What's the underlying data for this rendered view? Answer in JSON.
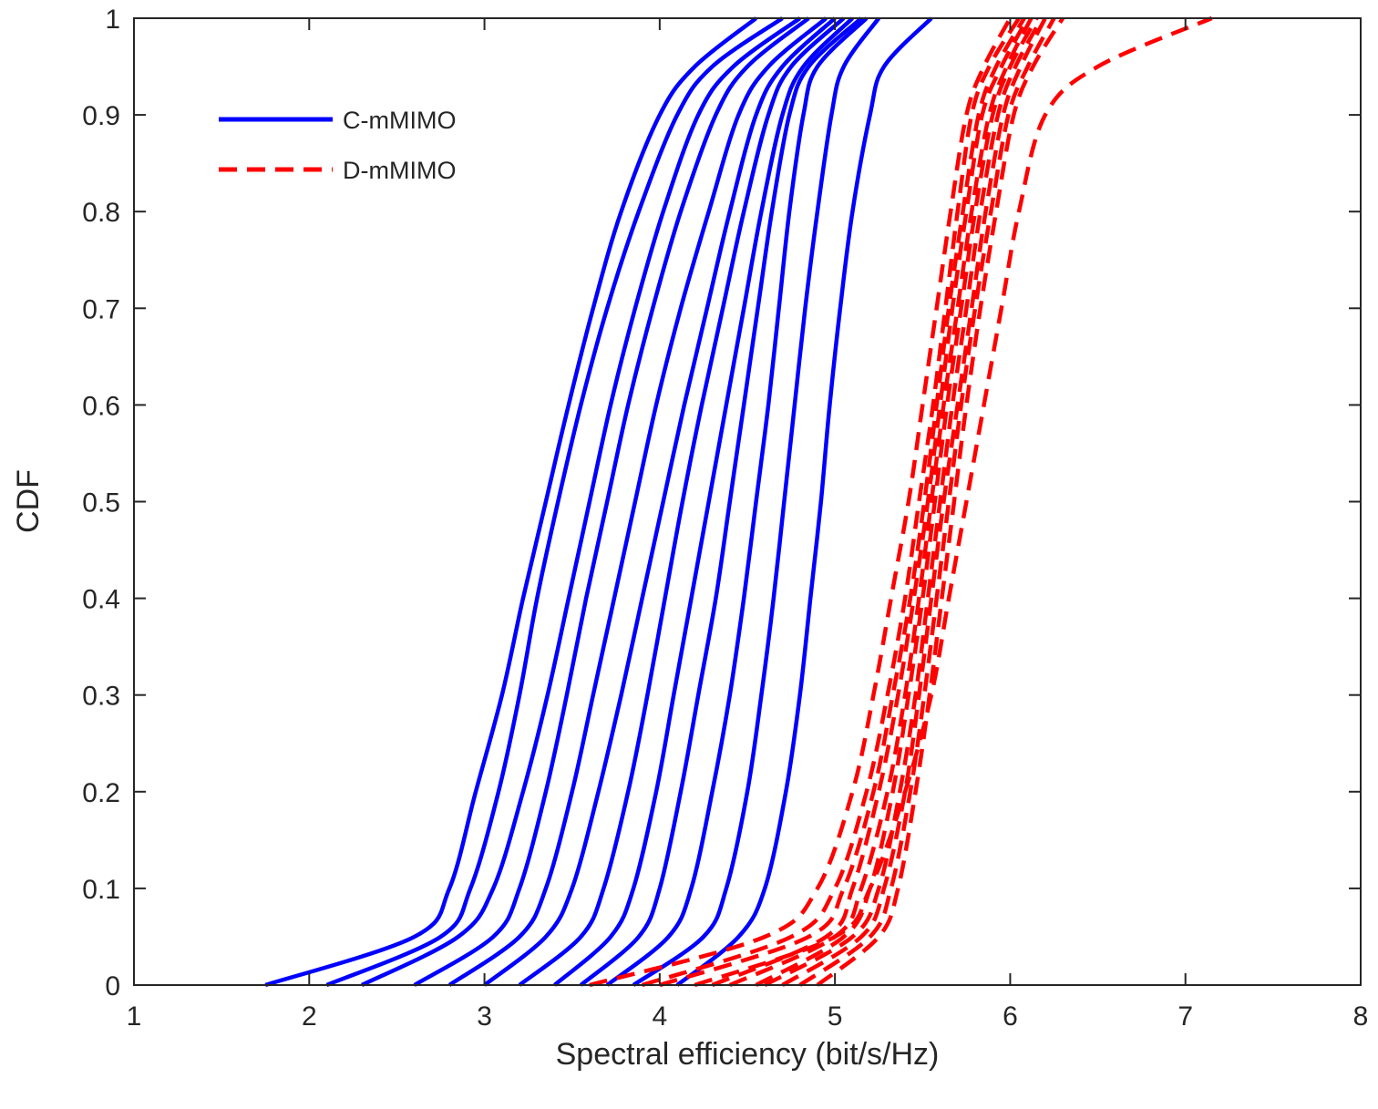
{
  "chart_data": {
    "type": "line",
    "title": "",
    "xlabel": "Spectral efficiency (bit/s/Hz)",
    "ylabel": "CDF",
    "xlim": [
      1,
      8
    ],
    "ylim": [
      0,
      1
    ],
    "xticks": [
      "1",
      "2",
      "3",
      "4",
      "5",
      "6",
      "7",
      "8"
    ],
    "yticks": [
      "0",
      "0.1",
      "0.2",
      "0.3",
      "0.4",
      "0.5",
      "0.6",
      "0.7",
      "0.8",
      "0.9",
      "1"
    ],
    "grid": false,
    "legend_position": "top-left",
    "curve_quantiles": [
      0,
      0.05,
      0.1,
      0.2,
      0.3,
      0.4,
      0.5,
      0.6,
      0.7,
      0.8,
      0.9,
      0.95,
      1
    ],
    "series": [
      {
        "name": "C-mMIMO",
        "style": "solid",
        "color": "#0000ff",
        "curves": [
          [
            1.75,
            2.6,
            2.8,
            2.95,
            3.1,
            3.22,
            3.35,
            3.48,
            3.62,
            3.78,
            4.0,
            4.2,
            4.55
          ],
          [
            2.1,
            2.75,
            2.92,
            3.08,
            3.2,
            3.3,
            3.42,
            3.55,
            3.7,
            3.88,
            4.1,
            4.3,
            4.7
          ],
          [
            2.3,
            2.85,
            3.05,
            3.22,
            3.36,
            3.48,
            3.6,
            3.72,
            3.86,
            4.02,
            4.22,
            4.42,
            4.8
          ],
          [
            2.6,
            3.05,
            3.2,
            3.35,
            3.47,
            3.58,
            3.7,
            3.82,
            3.96,
            4.12,
            4.32,
            4.5,
            4.85
          ],
          [
            2.8,
            3.2,
            3.35,
            3.5,
            3.62,
            3.74,
            3.86,
            3.98,
            4.12,
            4.28,
            4.45,
            4.62,
            4.95
          ],
          [
            3.0,
            3.35,
            3.5,
            3.65,
            3.78,
            3.9,
            4.02,
            4.14,
            4.27,
            4.4,
            4.55,
            4.7,
            5.0
          ],
          [
            3.2,
            3.55,
            3.68,
            3.82,
            3.93,
            4.03,
            4.13,
            4.24,
            4.36,
            4.48,
            4.62,
            4.75,
            5.05
          ],
          [
            3.4,
            3.72,
            3.85,
            3.98,
            4.08,
            4.18,
            4.28,
            4.38,
            4.48,
            4.58,
            4.7,
            4.82,
            5.1
          ],
          [
            3.55,
            3.88,
            4.0,
            4.12,
            4.22,
            4.32,
            4.4,
            4.48,
            4.56,
            4.64,
            4.74,
            4.85,
            5.15
          ],
          [
            3.7,
            4.05,
            4.18,
            4.3,
            4.4,
            4.48,
            4.55,
            4.62,
            4.68,
            4.74,
            4.82,
            4.9,
            5.18
          ],
          [
            3.85,
            4.25,
            4.38,
            4.5,
            4.58,
            4.65,
            4.71,
            4.77,
            4.83,
            4.9,
            4.98,
            5.05,
            5.25
          ],
          [
            4.1,
            4.45,
            4.6,
            4.72,
            4.8,
            4.86,
            4.92,
            4.97,
            5.03,
            5.1,
            5.2,
            5.28,
            5.55
          ]
        ]
      },
      {
        "name": "D-mMIMO",
        "style": "dashed",
        "color": "#ff0000",
        "curves": [
          [
            3.6,
            4.6,
            4.9,
            5.1,
            5.22,
            5.32,
            5.42,
            5.5,
            5.58,
            5.66,
            5.75,
            5.85,
            6.0
          ],
          [
            3.9,
            4.75,
            5.0,
            5.18,
            5.3,
            5.4,
            5.48,
            5.56,
            5.63,
            5.7,
            5.78,
            5.88,
            6.05
          ],
          [
            4.0,
            4.85,
            5.05,
            5.22,
            5.33,
            5.43,
            5.51,
            5.58,
            5.65,
            5.73,
            5.82,
            5.92,
            6.08
          ],
          [
            4.3,
            4.95,
            5.1,
            5.25,
            5.36,
            5.45,
            5.53,
            5.6,
            5.67,
            5.75,
            5.84,
            5.95,
            6.1
          ],
          [
            4.4,
            5.0,
            5.15,
            5.3,
            5.4,
            5.48,
            5.55,
            5.62,
            5.7,
            5.78,
            5.88,
            5.98,
            6.12
          ],
          [
            4.55,
            5.05,
            5.2,
            5.33,
            5.42,
            5.5,
            5.57,
            5.64,
            5.72,
            5.8,
            5.9,
            6.0,
            6.15
          ],
          [
            4.6,
            5.1,
            5.25,
            5.37,
            5.46,
            5.53,
            5.6,
            5.67,
            5.75,
            5.83,
            5.93,
            6.03,
            6.18
          ],
          [
            4.7,
            5.15,
            5.28,
            5.4,
            5.48,
            5.55,
            5.62,
            5.7,
            5.78,
            5.86,
            5.96,
            6.06,
            6.2
          ],
          [
            4.8,
            5.2,
            5.32,
            5.43,
            5.51,
            5.58,
            5.65,
            5.72,
            5.8,
            5.89,
            5.99,
            6.1,
            6.25
          ],
          [
            4.9,
            5.25,
            5.36,
            5.46,
            5.54,
            5.61,
            5.68,
            5.75,
            5.83,
            5.92,
            6.02,
            6.13,
            6.3
          ],
          [
            4.2,
            5.0,
            5.2,
            5.4,
            5.55,
            5.65,
            5.75,
            5.85,
            5.95,
            6.05,
            6.2,
            6.5,
            7.15
          ]
        ]
      }
    ]
  }
}
